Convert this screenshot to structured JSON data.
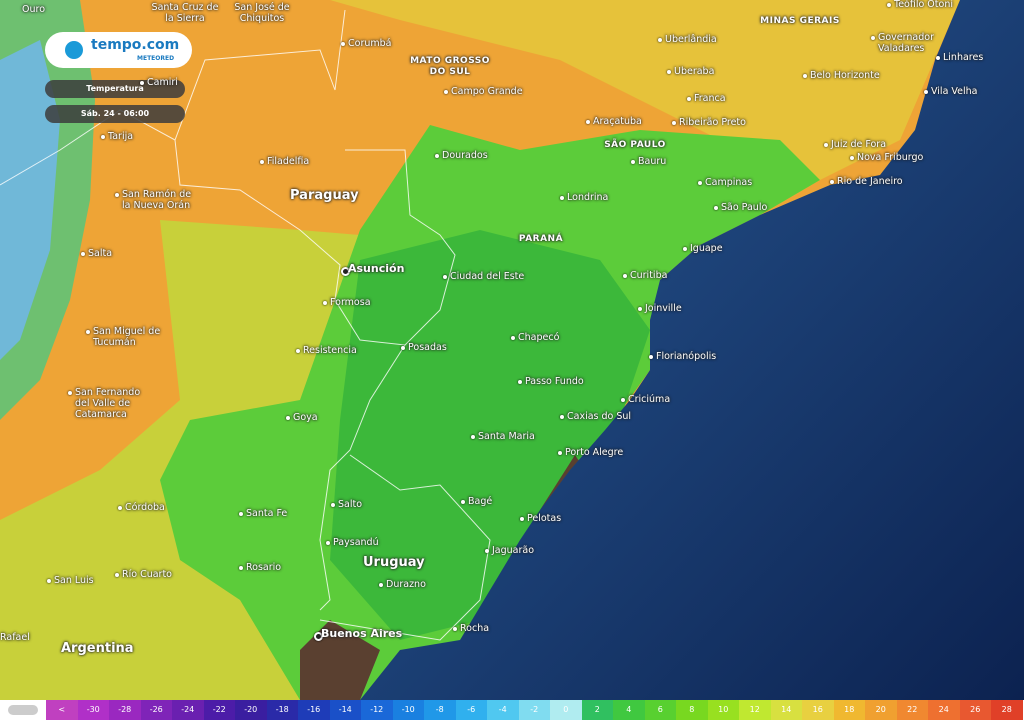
{
  "header": {
    "logo": "tempo.com",
    "logo_sub": "METEORED",
    "layer": "Temperatura",
    "time": "Sáb. 24 - 06:00"
  },
  "places": [
    {
      "label": "Ouro"
    },
    {
      "label": "Santa Cruz de la Sierra"
    },
    {
      "label": "San José de Chiquitos"
    },
    {
      "label": "Corumbá"
    },
    {
      "label": "MATO GROSSO DO SUL"
    },
    {
      "label": "Uberlândia"
    },
    {
      "label": "MINAS GERAIS"
    },
    {
      "label": "Teófilo Otoni"
    },
    {
      "label": "Governador Valadares"
    },
    {
      "label": "Linhares"
    },
    {
      "label": "Vila Velha"
    },
    {
      "label": "Belo Horizonte"
    },
    {
      "label": "Uberaba"
    },
    {
      "label": "Franca"
    },
    {
      "label": "Campo Grande"
    },
    {
      "label": "Ribeirão Preto"
    },
    {
      "label": "Araçatuba"
    },
    {
      "label": "SÃO PAULO"
    },
    {
      "label": "Bauru"
    },
    {
      "label": "Juiz de Fora"
    },
    {
      "label": "Nova Friburgo"
    },
    {
      "label": "Rio de Janeiro"
    },
    {
      "label": "Camiri"
    },
    {
      "label": "Tarija"
    },
    {
      "label": "Filadelfia"
    },
    {
      "label": "Dourados"
    },
    {
      "label": "Campinas"
    },
    {
      "label": "São Paulo"
    },
    {
      "label": "Paraguay"
    },
    {
      "label": "San Ramón de la Nueva Orán"
    },
    {
      "label": "Londrina"
    },
    {
      "label": "PARANÁ"
    },
    {
      "label": "Iguape"
    },
    {
      "label": "Salta"
    },
    {
      "label": "Asunción"
    },
    {
      "label": "Ciudad del Este"
    },
    {
      "label": "Curitiba"
    },
    {
      "label": "Joinville"
    },
    {
      "label": "Formosa"
    },
    {
      "label": "San Miguel de Tucumán"
    },
    {
      "label": "Chapecó"
    },
    {
      "label": "Resistencia"
    },
    {
      "label": "Posadas"
    },
    {
      "label": "Florianópolis"
    },
    {
      "label": "Passo Fundo"
    },
    {
      "label": "Criciúma"
    },
    {
      "label": "San Fernando del Valle de Catamarca"
    },
    {
      "label": "Goya"
    },
    {
      "label": "Caxias do Sul"
    },
    {
      "label": "Santa Maria"
    },
    {
      "label": "Porto Alegre"
    },
    {
      "label": "Bagé"
    },
    {
      "label": "Córdoba"
    },
    {
      "label": "Santa Fe"
    },
    {
      "label": "Salto"
    },
    {
      "label": "Pelotas"
    },
    {
      "label": "Paysandú"
    },
    {
      "label": "Jaguarão"
    },
    {
      "label": "Uruguay"
    },
    {
      "label": "Río Cuarto"
    },
    {
      "label": "Rosario"
    },
    {
      "label": "San Luis"
    },
    {
      "label": "Durazno"
    },
    {
      "label": "Buenos Aires"
    },
    {
      "label": "Rocha"
    },
    {
      "label": "Argentina"
    },
    {
      "label": "Rafael"
    }
  ],
  "legend": {
    "labels": [
      "<",
      "-30",
      "-28",
      "-26",
      "-24",
      "-22",
      "-20",
      "-18",
      "-16",
      "-14",
      "-12",
      "-10",
      "-8",
      "-6",
      "-4",
      "-2",
      "0",
      "2",
      "4",
      "6",
      "8",
      "10",
      "12",
      "14",
      "16",
      "18",
      "20",
      "22",
      "24",
      "26",
      "28"
    ],
    "colors": [
      "#c040c0",
      "#b030c8",
      "#9a28c0",
      "#7f24b8",
      "#6a20b0",
      "#4c1ca8",
      "#3a1ea0",
      "#2a2aa8",
      "#1e3cb8",
      "#1a50c8",
      "#1a68d8",
      "#1a80e0",
      "#2098e8",
      "#30b0ee",
      "#50c8f0",
      "#80dcf0",
      "#b0ecf0",
      "#30c060",
      "#40c840",
      "#58d030",
      "#78d820",
      "#98e020",
      "#c0e830",
      "#d8e040",
      "#e8d040",
      "#f0b830",
      "#f0a030",
      "#f08830",
      "#ee7030",
      "#e85830",
      "#e04028"
    ]
  }
}
